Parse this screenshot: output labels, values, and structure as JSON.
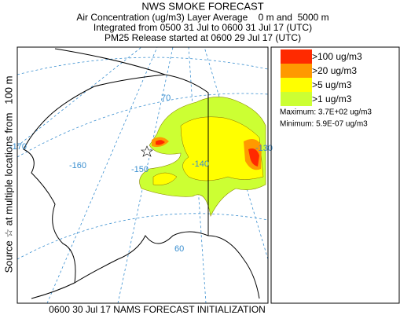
{
  "header": {
    "title": "NWS SMOKE FORECAST",
    "lines": [
      "Air Concentration (ug/m3) Layer Average    0 m and  5000 m",
      "Integrated from 0500 31 Jul to 0600 31 Jul 17 (UTC)",
      "PM25 Release started at 0600 29 Jul 17 (UTC)"
    ]
  },
  "side_label": "Source ☆ at multiple locations from   100 m",
  "footer": "0600 30 Jul 17 NAMS FORECAST INITIALIZATION",
  "map": {
    "longitude_labels": [
      "-170",
      "-160",
      "-150",
      "-140",
      "-130"
    ],
    "latitude_labels": [
      "70",
      "60"
    ]
  },
  "legend": {
    "entries": [
      {
        "label": ">100 ug/m3",
        "color": "#ff2a00"
      },
      {
        "label": ">20 ug/m3",
        "color": "#ff9900"
      },
      {
        "label": ">5 ug/m3",
        "color": "#ffff00"
      },
      {
        "label": ">1 ug/m3",
        "color": "#ccff33"
      }
    ],
    "maximum": "Maximum: 3.7E+02 ug/m3",
    "minimum": "Minimum: 5.9E-07 ug/m3"
  }
}
